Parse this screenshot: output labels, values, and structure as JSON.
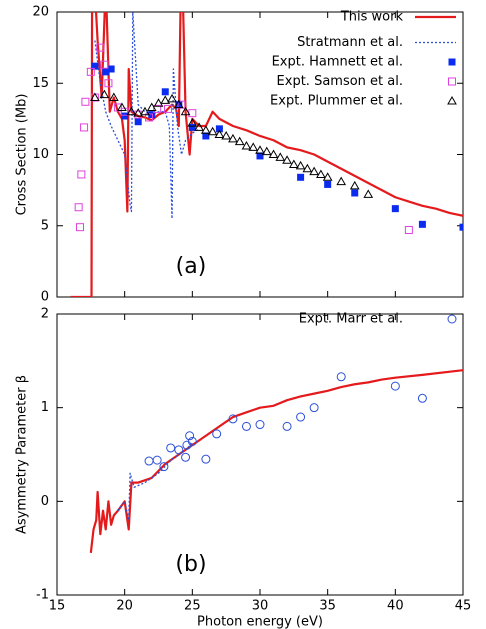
{
  "chart_data": [
    {
      "type": "line",
      "ylabel": "Cross Section (Mb)",
      "annotation": "(a)",
      "xlim": [
        15,
        45
      ],
      "xticks": [
        15,
        20,
        25,
        30,
        35,
        40,
        45
      ],
      "ylim": [
        0,
        20
      ],
      "yticks": [
        0,
        5,
        10,
        15,
        20
      ],
      "legend": "upper right",
      "series": [
        {
          "name": "This work",
          "color": "#e41a1c",
          "style": "solid",
          "x": [
            16,
            17.5,
            17.55,
            17.6,
            18,
            18.3,
            18.6,
            18.9,
            19.2,
            19.5,
            19.8,
            20.0,
            20.2,
            20.3,
            20.5,
            21,
            21.5,
            22,
            22.5,
            23,
            23.5,
            23.8,
            24.0,
            24.2,
            24.5,
            24.8,
            25.0,
            25.5,
            26,
            26.5,
            27,
            28,
            29,
            30,
            31,
            32,
            33,
            34,
            35,
            36,
            37,
            38,
            39,
            40,
            41,
            42,
            43,
            44,
            45
          ],
          "values": [
            0,
            0,
            0,
            25,
            18,
            14,
            22,
            13,
            14,
            13,
            12.5,
            11,
            6,
            16,
            13,
            12.7,
            12.6,
            12.4,
            12.8,
            13,
            13.5,
            13.2,
            12,
            25,
            13,
            10,
            12.5,
            12,
            12,
            13,
            12.5,
            12,
            11.7,
            11.3,
            11,
            10.5,
            10.3,
            10,
            9.5,
            9,
            8.5,
            8,
            7.5,
            7,
            6.7,
            6.4,
            6.2,
            5.9,
            5.7
          ]
        },
        {
          "name": "Stratmann et al.",
          "color": "#2b4fd8",
          "style": "dotted",
          "x": [
            17.8,
            18.2,
            18.6,
            19,
            19.5,
            20,
            20.4,
            20.5,
            20.6,
            21,
            21.5,
            22,
            22.5,
            23,
            23.3,
            23.5,
            23.6,
            23.9,
            24.2,
            24.5,
            25,
            25.5
          ],
          "values": [
            18,
            15,
            13,
            12,
            11,
            10,
            6.5,
            6,
            20,
            13.5,
            13,
            12.8,
            13,
            13,
            12,
            5.5,
            16,
            12,
            10,
            11,
            11.5,
            11.8
          ]
        },
        {
          "name": "Expt. Hamnett et al.",
          "color": "#0a2cf0",
          "style": "marker",
          "marker": "filled-square",
          "x": [
            17.8,
            18.6,
            19,
            20,
            21,
            22,
            23,
            24,
            25,
            26,
            27,
            30,
            33,
            35,
            37,
            40,
            42,
            45
          ],
          "values": [
            16.2,
            15.8,
            16,
            12.7,
            12.3,
            12.8,
            14.4,
            13.5,
            11.9,
            11.3,
            11.8,
            9.9,
            8.4,
            7.9,
            7.3,
            6.2,
            5.1,
            4.9
          ]
        },
        {
          "name": "Expt. Samson et al.",
          "color": "#e040e0",
          "style": "marker",
          "marker": "open-square",
          "x": [
            16.7,
            16.6,
            16.8,
            17,
            17.1,
            17.5,
            17.8,
            18.2,
            18.5,
            18.8,
            19.5,
            20,
            21,
            21.8,
            22.4,
            23.2,
            24.2,
            25,
            41
          ],
          "values": [
            4.9,
            6.3,
            8.6,
            11.9,
            13.7,
            15.8,
            14,
            17.5,
            16.3,
            15,
            13.3,
            13,
            12.8,
            12.6,
            13.2,
            13.2,
            13.5,
            12.9,
            4.7
          ]
        },
        {
          "name": "Expt. Plummer et al.",
          "color": "#000000",
          "style": "marker",
          "marker": "triangle",
          "x": [
            17.8,
            18.5,
            19.2,
            19.8,
            20.5,
            21,
            21.5,
            22,
            22.5,
            23,
            23.5,
            24,
            24.5,
            25,
            25.5,
            26,
            26.5,
            27,
            27.5,
            28,
            28.5,
            29,
            29.5,
            30,
            30.5,
            31,
            31.5,
            32,
            32.5,
            33,
            33.5,
            34,
            34.5,
            35,
            36,
            37,
            38
          ],
          "values": [
            14,
            14.2,
            14,
            13.3,
            13,
            12.9,
            13,
            13.3,
            13.6,
            13.8,
            13.9,
            13.5,
            13,
            12.2,
            11.9,
            11.7,
            11.6,
            11.4,
            11.3,
            11.1,
            10.9,
            10.6,
            10.5,
            10.3,
            10.2,
            10,
            9.8,
            9.6,
            9.3,
            9.2,
            9,
            8.8,
            8.6,
            8.4,
            8.1,
            7.8,
            7.2
          ]
        }
      ]
    },
    {
      "type": "line",
      "ylabel": "Asymmetry Parameter β",
      "xlabel": "Photon energy (eV)",
      "annotation": "(b)",
      "xlim": [
        15,
        45
      ],
      "xticks": [
        15,
        20,
        25,
        30,
        35,
        40,
        45
      ],
      "ylim": [
        -1,
        2
      ],
      "yticks": [
        -1,
        0,
        1,
        2
      ],
      "legend": "upper right",
      "series": [
        {
          "color": "#e41a1c",
          "style": "solid",
          "x": [
            17.5,
            17.7,
            17.9,
            18.0,
            18.2,
            18.4,
            18.6,
            18.8,
            19.0,
            19.2,
            19.5,
            20,
            20.3,
            20.5,
            21,
            22,
            23,
            24,
            25,
            26,
            27,
            28,
            29,
            30,
            31,
            32,
            33,
            34,
            35,
            36,
            37,
            38,
            39,
            40,
            42,
            45
          ],
          "values": [
            -0.55,
            -0.3,
            -0.2,
            0.1,
            -0.35,
            -0.1,
            -0.3,
            0,
            -0.25,
            -0.15,
            -0.1,
            0,
            -0.3,
            0.2,
            0.2,
            0.25,
            0.4,
            0.5,
            0.6,
            0.7,
            0.8,
            0.9,
            0.95,
            1.0,
            1.02,
            1.08,
            1.12,
            1.15,
            1.18,
            1.22,
            1.25,
            1.27,
            1.3,
            1.32,
            1.35,
            1.4
          ]
        },
        {
          "color": "#2b4fd8",
          "style": "dotted",
          "x": [
            19.5,
            20,
            20.3,
            20.4,
            20.7,
            21.5,
            22.5,
            23.5,
            24.5,
            25
          ],
          "values": [
            -0.1,
            0,
            -0.2,
            0.3,
            0.15,
            0.2,
            0.3,
            0.45,
            0.55,
            0.62
          ]
        },
        {
          "name": "Expt. Marr et al.",
          "color": "#2b4fd8",
          "style": "marker",
          "marker": "circle",
          "x": [
            21.8,
            22.4,
            22.9,
            23.4,
            24,
            24.5,
            24.6,
            24.8,
            25,
            26,
            26.8,
            28,
            29,
            30,
            32,
            33,
            34,
            36,
            40,
            42
          ],
          "values": [
            0.43,
            0.44,
            0.37,
            0.57,
            0.55,
            0.47,
            0.6,
            0.7,
            0.64,
            0.45,
            0.72,
            0.88,
            0.8,
            0.82,
            0.8,
            0.9,
            1.0,
            1.33,
            1.23,
            1.1
          ]
        }
      ]
    }
  ]
}
